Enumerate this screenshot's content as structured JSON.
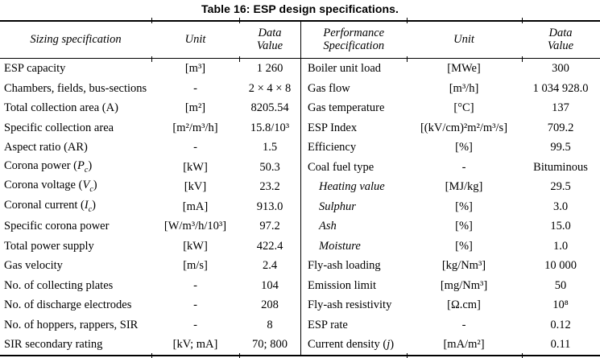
{
  "title": "Table 16: ESP design specifications.",
  "left_table": {
    "headers": {
      "spec": "Sizing specification",
      "unit": "Unit",
      "value": "Data\nValue"
    },
    "rows": [
      {
        "label": "ESP capacity",
        "unit": "[m³]",
        "value": "1 260"
      },
      {
        "label": "Chambers, fields, bus-sections",
        "unit": "-",
        "value": "2 × 4 × 8"
      },
      {
        "label": "Total collection area (A)",
        "unit": "[m²]",
        "value": "8205.54"
      },
      {
        "label": "Specific collection area",
        "unit": "[m²/m³/h]",
        "value": "15.8/10³"
      },
      {
        "label": "Aspect ratio (AR)",
        "unit": "-",
        "value": "1.5"
      },
      {
        "label": "Corona power (<i>P</i><sub>c</sub>)",
        "unit": "[kW]",
        "value": "50.3"
      },
      {
        "label": "Corona voltage (<i>V</i><sub>c</sub>)",
        "unit": "[kV]",
        "value": "23.2"
      },
      {
        "label": "Coronal current (<i>I</i><sub>c</sub>)",
        "unit": "[mA]",
        "value": "913.0"
      },
      {
        "label": "Specific corona power",
        "unit": "[W/m³/h/10³]",
        "value": "97.2"
      },
      {
        "label": "Total power supply",
        "unit": "[kW]",
        "value": "422.4"
      },
      {
        "label": "Gas velocity",
        "unit": "[m/s]",
        "value": "2.4"
      },
      {
        "label": "No. of collecting plates",
        "unit": "-",
        "value": "104"
      },
      {
        "label": "No. of discharge electrodes",
        "unit": "-",
        "value": "208"
      },
      {
        "label": "No. of hoppers, rappers, SIR",
        "unit": "-",
        "value": "8"
      },
      {
        "label": "SIR secondary rating",
        "unit": "[kV; mA]",
        "value": "70; 800"
      }
    ]
  },
  "right_table": {
    "headers": {
      "spec": "Performance\nSpecification",
      "unit": "Unit",
      "value": "Data\nValue"
    },
    "rows": [
      {
        "label": "Boiler unit load",
        "unit": "[MWe]",
        "value": "300"
      },
      {
        "label": "Gas flow",
        "unit": "[m³/h]",
        "value": "1 034 928.0"
      },
      {
        "label": "Gas temperature",
        "unit": "[°C]",
        "value": "137"
      },
      {
        "label": "ESP Index",
        "unit": "[(kV/cm)²m²/m³/s]",
        "value": "709.2"
      },
      {
        "label": "Efficiency",
        "unit": "[%]",
        "value": "99.5"
      },
      {
        "label": "Coal fuel type",
        "unit": "-",
        "value": "Bituminous"
      },
      {
        "label": "Heating value",
        "cls": "sub",
        "unit": "[MJ/kg]",
        "value": "29.5"
      },
      {
        "label": "Sulphur",
        "cls": "sub",
        "unit": "[%]",
        "value": "3.0"
      },
      {
        "label": "Ash",
        "cls": "sub",
        "unit": "[%]",
        "value": "15.0"
      },
      {
        "label": "Moisture",
        "cls": "sub",
        "unit": "[%]",
        "value": "1.0"
      },
      {
        "label": "Fly-ash loading",
        "unit": "[kg/Nm³]",
        "value": "10 000"
      },
      {
        "label": "Emission limit",
        "unit": "[mg/Nm³]",
        "value": "50"
      },
      {
        "label": "Fly-ash resistivity",
        "unit": "[Ω.cm]",
        "value": "10⁸"
      },
      {
        "label": "ESP rate",
        "unit": "-",
        "value": "0.12"
      },
      {
        "label": "Current density (<i>j</i>)",
        "unit": "[mA/m²]",
        "value": "0.11"
      }
    ]
  },
  "colors": {
    "text": "#000000",
    "background": "#ffffff",
    "rule": "#000000"
  }
}
